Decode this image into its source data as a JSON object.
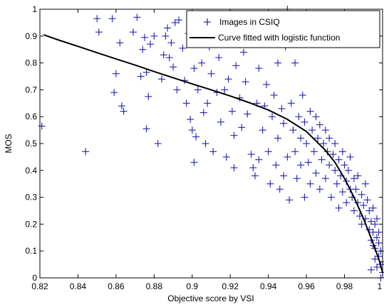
{
  "chart_data": {
    "type": "scatter",
    "title": "",
    "xlabel": "Objective score by VSI",
    "ylabel": "MOS",
    "xlim": [
      0.82,
      1.0
    ],
    "ylim": [
      0,
      1
    ],
    "xticks": [
      0.82,
      0.84,
      0.86,
      0.88,
      0.9,
      0.92,
      0.94,
      0.96,
      0.98,
      1
    ],
    "xtick_labels": [
      "0.82",
      "0.84",
      "0.86",
      "0.88",
      "0.9",
      "0.92",
      "0.94",
      "0.96",
      "0.98",
      "1"
    ],
    "yticks": [
      0,
      0.1,
      0.2,
      0.3,
      0.4,
      0.5,
      0.6,
      0.7,
      0.8,
      0.9,
      1
    ],
    "ytick_labels": [
      "0",
      "0.1",
      "0.2",
      "0.3",
      "0.4",
      "0.5",
      "0.6",
      "0.7",
      "0.8",
      "0.9",
      "1"
    ],
    "grid": false,
    "legend_position": "top-right",
    "series": [
      {
        "name": "Images in CSIQ",
        "kind": "scatter",
        "marker": "+",
        "color": "#1f1fb4",
        "points": [
          [
            0.821,
            0.565
          ],
          [
            0.844,
            0.47
          ],
          [
            0.85,
            0.965
          ],
          [
            0.851,
            0.915
          ],
          [
            0.858,
            0.965
          ],
          [
            0.859,
            0.69
          ],
          [
            0.86,
            0.76
          ],
          [
            0.862,
            0.875
          ],
          [
            0.863,
            0.64
          ],
          [
            0.864,
            0.62
          ],
          [
            0.869,
            0.915
          ],
          [
            0.871,
            0.97
          ],
          [
            0.873,
            0.75
          ],
          [
            0.874,
            0.85
          ],
          [
            0.875,
            0.895
          ],
          [
            0.876,
            0.765
          ],
          [
            0.876,
            0.555
          ],
          [
            0.877,
            0.675
          ],
          [
            0.878,
            0.87
          ],
          [
            0.88,
            0.9
          ],
          [
            0.882,
            0.5
          ],
          [
            0.884,
            0.74
          ],
          [
            0.885,
            0.83
          ],
          [
            0.886,
            0.9
          ],
          [
            0.887,
            0.93
          ],
          [
            0.888,
            0.82
          ],
          [
            0.889,
            0.875
          ],
          [
            0.89,
            0.785
          ],
          [
            0.891,
            0.95
          ],
          [
            0.892,
            0.7
          ],
          [
            0.893,
            0.96
          ],
          [
            0.895,
            0.855
          ],
          [
            0.896,
            0.735
          ],
          [
            0.897,
            0.65
          ],
          [
            0.898,
            0.91
          ],
          [
            0.899,
            0.59
          ],
          [
            0.9,
            0.55
          ],
          [
            0.901,
            0.78
          ],
          [
            0.901,
            0.43
          ],
          [
            0.902,
            0.525
          ],
          [
            0.903,
            0.7
          ],
          [
            0.904,
            0.98
          ],
          [
            0.905,
            0.8
          ],
          [
            0.906,
            0.615
          ],
          [
            0.907,
            0.5
          ],
          [
            0.908,
            0.65
          ],
          [
            0.909,
            0.86
          ],
          [
            0.91,
            0.76
          ],
          [
            0.911,
            0.47
          ],
          [
            0.912,
            0.95
          ],
          [
            0.913,
            0.69
          ],
          [
            0.914,
            0.82
          ],
          [
            0.915,
            0.58
          ],
          [
            0.916,
            0.93
          ],
          [
            0.917,
            0.7
          ],
          [
            0.918,
            0.45
          ],
          [
            0.919,
            0.74
          ],
          [
            0.92,
            0.88
          ],
          [
            0.921,
            0.62
          ],
          [
            0.922,
            0.41
          ],
          [
            0.922,
            0.53
          ],
          [
            0.923,
            0.79
          ],
          [
            0.924,
            0.955
          ],
          [
            0.925,
            0.67
          ],
          [
            0.926,
            0.56
          ],
          [
            0.927,
            0.84
          ],
          [
            0.928,
            0.73
          ],
          [
            0.929,
            0.61
          ],
          [
            0.93,
            0.9
          ],
          [
            0.931,
            0.46
          ],
          [
            0.932,
            0.41
          ],
          [
            0.933,
            0.38
          ],
          [
            0.934,
            0.65
          ],
          [
            0.935,
            0.78
          ],
          [
            0.935,
            0.44
          ],
          [
            0.936,
            0.87
          ],
          [
            0.937,
            0.55
          ],
          [
            0.938,
            0.64
          ],
          [
            0.939,
            0.72
          ],
          [
            0.94,
            0.95
          ],
          [
            0.94,
            0.47
          ],
          [
            0.941,
            0.35
          ],
          [
            0.942,
            0.6
          ],
          [
            0.943,
            0.68
          ],
          [
            0.944,
            0.42
          ],
          [
            0.945,
            0.8
          ],
          [
            0.945,
            0.52
          ],
          [
            0.946,
            0.33
          ],
          [
            0.947,
            0.63
          ],
          [
            0.948,
            0.575
          ],
          [
            0.948,
            0.38
          ],
          [
            0.949,
            0.86
          ],
          [
            0.95,
            1.0
          ],
          [
            0.95,
            0.45
          ],
          [
            0.951,
            0.29
          ],
          [
            0.952,
            0.65
          ],
          [
            0.953,
            0.55
          ],
          [
            0.954,
            0.8
          ],
          [
            0.954,
            0.47
          ],
          [
            0.955,
            0.37
          ],
          [
            0.956,
            0.6
          ],
          [
            0.957,
            0.52
          ],
          [
            0.957,
            0.42
          ],
          [
            0.958,
            0.68
          ],
          [
            0.959,
            0.58
          ],
          [
            0.959,
            0.3
          ],
          [
            0.96,
            0.5
          ],
          [
            0.961,
            0.43
          ],
          [
            0.962,
            0.62
          ],
          [
            0.962,
            0.35
          ],
          [
            0.963,
            0.55
          ],
          [
            0.964,
            0.47
          ],
          [
            0.965,
            0.6
          ],
          [
            0.965,
            0.39
          ],
          [
            0.966,
            0.52
          ],
          [
            0.967,
            0.33
          ],
          [
            0.967,
            0.57
          ],
          [
            0.968,
            0.44
          ],
          [
            0.969,
            0.5
          ],
          [
            0.97,
            0.37
          ],
          [
            0.97,
            0.55
          ],
          [
            0.971,
            0.47
          ],
          [
            0.972,
            0.42
          ],
          [
            0.972,
            0.52
          ],
          [
            0.973,
            0.3
          ],
          [
            0.974,
            0.46
          ],
          [
            0.975,
            0.4
          ],
          [
            0.975,
            0.5
          ],
          [
            0.976,
            0.35
          ],
          [
            0.977,
            0.44
          ],
          [
            0.977,
            0.26
          ],
          [
            0.978,
            0.38
          ],
          [
            0.979,
            0.47
          ],
          [
            0.979,
            0.32
          ],
          [
            0.98,
            0.42
          ],
          [
            0.981,
            0.36
          ],
          [
            0.981,
            0.28
          ],
          [
            0.982,
            0.4
          ],
          [
            0.983,
            0.33
          ],
          [
            0.983,
            0.45
          ],
          [
            0.984,
            0.3
          ],
          [
            0.985,
            0.37
          ],
          [
            0.985,
            0.25
          ],
          [
            0.986,
            0.33
          ],
          [
            0.987,
            0.28
          ],
          [
            0.987,
            0.38
          ],
          [
            0.988,
            0.23
          ],
          [
            0.989,
            0.31
          ],
          [
            0.989,
            0.2
          ],
          [
            0.99,
            0.27
          ],
          [
            0.991,
            0.35
          ],
          [
            0.991,
            0.22
          ],
          [
            0.992,
            0.29
          ],
          [
            0.993,
            0.18
          ],
          [
            0.993,
            0.25
          ],
          [
            0.994,
            0.21
          ],
          [
            0.994,
            0.14
          ],
          [
            0.995,
            0.26
          ],
          [
            0.995,
            0.17
          ],
          [
            0.996,
            0.2
          ],
          [
            0.996,
            0.11
          ],
          [
            0.997,
            0.15
          ],
          [
            0.997,
            0.22
          ],
          [
            0.998,
            0.08
          ],
          [
            0.998,
            0.13
          ],
          [
            0.999,
            0.05
          ],
          [
            0.999,
            0.1
          ],
          [
            1.0,
            0.02
          ],
          [
            1.0,
            0.06
          ],
          [
            0.999,
            0.0
          ],
          [
            0.998,
            0.17
          ],
          [
            0.997,
            0.04
          ],
          [
            0.996,
            0.07
          ],
          [
            0.995,
            0.12
          ],
          [
            0.994,
            0.03
          ]
        ]
      },
      {
        "name": "Curve fitted with logistic function",
        "kind": "line",
        "color": "#000000",
        "points": [
          [
            0.822,
            0.905
          ],
          [
            0.83,
            0.885
          ],
          [
            0.84,
            0.862
          ],
          [
            0.85,
            0.838
          ],
          [
            0.86,
            0.815
          ],
          [
            0.87,
            0.792
          ],
          [
            0.88,
            0.768
          ],
          [
            0.89,
            0.745
          ],
          [
            0.9,
            0.722
          ],
          [
            0.91,
            0.7
          ],
          [
            0.92,
            0.677
          ],
          [
            0.93,
            0.652
          ],
          [
            0.94,
            0.625
          ],
          [
            0.95,
            0.59
          ],
          [
            0.96,
            0.545
          ],
          [
            0.97,
            0.475
          ],
          [
            0.975,
            0.43
          ],
          [
            0.98,
            0.37
          ],
          [
            0.985,
            0.3
          ],
          [
            0.99,
            0.22
          ],
          [
            0.995,
            0.13
          ],
          [
            0.998,
            0.07
          ],
          [
            1.0,
            0.02
          ]
        ]
      }
    ]
  }
}
